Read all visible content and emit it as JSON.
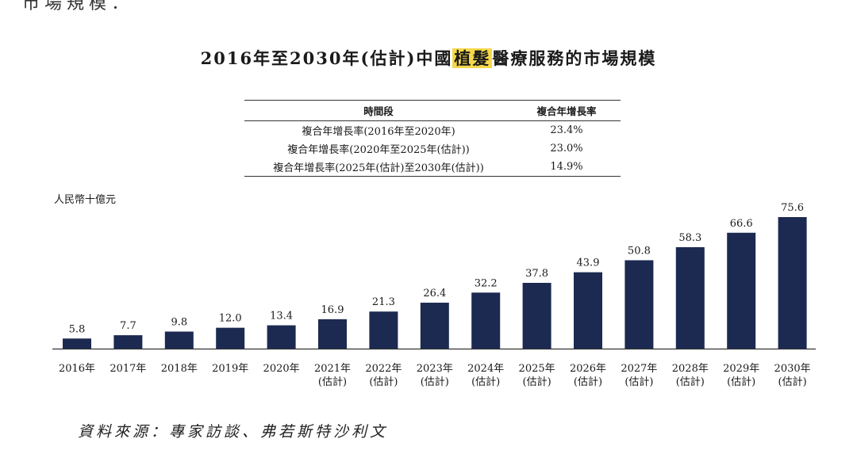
{
  "top_fragment": "市場規模：",
  "title": {
    "before": "2016年至2030年(估計)中國",
    "highlight": "植髮",
    "after": "醫療服務的市場規模"
  },
  "cagr_table": {
    "headers": [
      "時間段",
      "複合年增長率"
    ],
    "rows": [
      {
        "period": "複合年增長率(2016年至2020年)",
        "rate": "23.4%"
      },
      {
        "period": "複合年增長率(2020年至2025年(估計))",
        "rate": "23.0%"
      },
      {
        "period": "複合年增長率(2025年(估計)至2030年(估計))",
        "rate": "14.9%"
      }
    ]
  },
  "unit_label": "人民幣十億元",
  "source": "資料來源：專家訪談、弗若斯特沙利文",
  "colors": {
    "bar": "#1c2a52",
    "highlight": "#f5d84a"
  },
  "chart_data": {
    "type": "bar",
    "ylabel": "人民幣十億元",
    "categories": [
      "2016年",
      "2017年",
      "2018年",
      "2019年",
      "2020年",
      "2021年",
      "2022年",
      "2023年",
      "2024年",
      "2025年",
      "2026年",
      "2027年",
      "2028年",
      "2029年",
      "2030年"
    ],
    "category_sublabels": [
      "",
      "",
      "",
      "",
      "",
      "(估計)",
      "(估計)",
      "(估計)",
      "(估計)",
      "(估計)",
      "(估計)",
      "(估計)",
      "(估計)",
      "(估計)",
      "(估計)"
    ],
    "values": [
      5.8,
      7.7,
      9.8,
      12.0,
      13.4,
      16.9,
      21.3,
      26.4,
      32.2,
      37.8,
      43.9,
      50.8,
      58.3,
      66.6,
      75.6
    ],
    "value_labels": [
      "5.8",
      "7.7",
      "9.8",
      "12.0",
      "13.4",
      "16.9",
      "21.3",
      "26.4",
      "32.2",
      "37.8",
      "43.9",
      "50.8",
      "58.3",
      "66.6",
      "75.6"
    ],
    "ylim": [
      0,
      75.6
    ],
    "grid": false
  }
}
